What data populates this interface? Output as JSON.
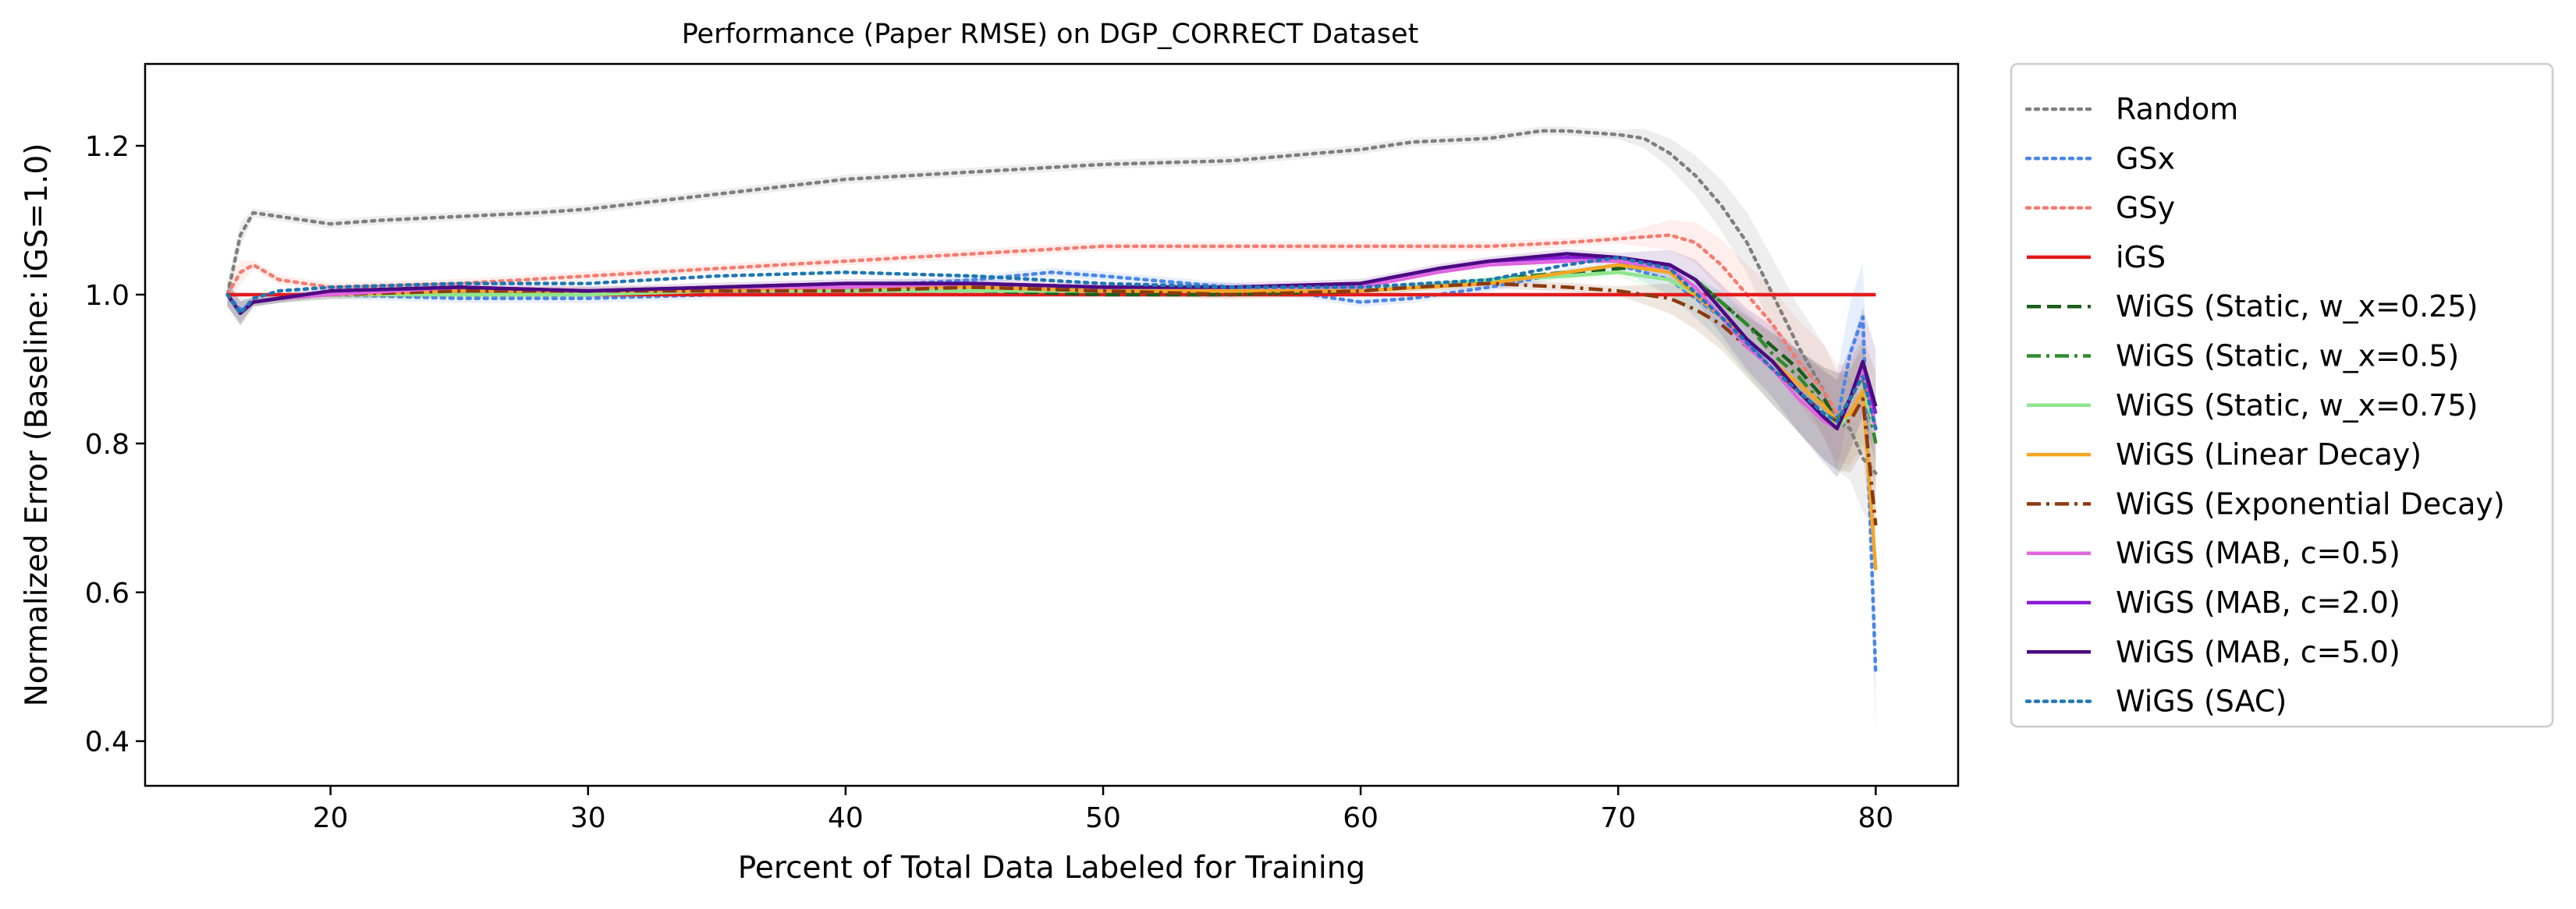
{
  "chart_data": {
    "type": "line",
    "title": "Performance (Paper RMSE) on DGP_CORRECT Dataset",
    "xlabel": "Percent of Total Data Labeled for Training",
    "ylabel": "Normalized Error (Baseline: iGS=1.0)",
    "xlim": [
      12.8,
      83.2
    ],
    "ylim": [
      0.34,
      1.31
    ],
    "xticks": [
      20,
      30,
      40,
      50,
      60,
      70,
      80
    ],
    "yticks": [
      0.4,
      0.6,
      0.8,
      1.0,
      1.2
    ],
    "legend_position": "outside right",
    "series": [
      {
        "name": "Random",
        "color": "#7f7f7f",
        "dash": "dot",
        "band": true,
        "x": [
          16,
          16.5,
          17,
          18,
          20,
          22,
          25,
          28,
          30,
          35,
          40,
          45,
          50,
          55,
          60,
          62,
          65,
          67,
          68,
          70,
          71,
          72,
          73,
          74,
          75,
          76,
          77,
          78,
          78.5,
          79,
          79.5,
          80
        ],
        "y": [
          1.0,
          1.08,
          1.11,
          1.105,
          1.095,
          1.1,
          1.105,
          1.11,
          1.115,
          1.135,
          1.155,
          1.165,
          1.175,
          1.18,
          1.195,
          1.205,
          1.21,
          1.22,
          1.22,
          1.215,
          1.21,
          1.19,
          1.16,
          1.12,
          1.07,
          1.0,
          0.93,
          0.87,
          0.83,
          0.82,
          0.78,
          0.76
        ]
      },
      {
        "name": "GSx",
        "color": "#4a86e8",
        "dash": "dot",
        "band": true,
        "x": [
          16,
          16.5,
          17,
          18,
          20,
          25,
          30,
          35,
          40,
          45,
          48,
          50,
          55,
          58,
          60,
          62,
          65,
          68,
          70,
          72,
          74,
          76,
          78,
          78.5,
          79,
          79.5,
          80
        ],
        "y": [
          1.0,
          0.98,
          0.99,
          0.995,
          1.0,
          0.995,
          0.995,
          1.0,
          1.01,
          1.02,
          1.03,
          1.025,
          1.01,
          1.0,
          0.99,
          0.995,
          1.01,
          1.03,
          1.04,
          1.02,
          0.97,
          0.9,
          0.84,
          0.83,
          0.92,
          0.97,
          0.49
        ]
      },
      {
        "name": "GSy",
        "color": "#f47c70",
        "dash": "dot",
        "band": true,
        "x": [
          16,
          16.5,
          17,
          18,
          20,
          25,
          30,
          35,
          40,
          45,
          50,
          55,
          60,
          65,
          68,
          70,
          72,
          73,
          74,
          75,
          76,
          77,
          78,
          78.5,
          79,
          79.5,
          80
        ],
        "y": [
          1.0,
          1.03,
          1.04,
          1.02,
          1.01,
          1.015,
          1.025,
          1.035,
          1.045,
          1.055,
          1.065,
          1.065,
          1.065,
          1.065,
          1.07,
          1.075,
          1.08,
          1.07,
          1.04,
          1.0,
          0.96,
          0.91,
          0.87,
          0.84,
          0.84,
          0.87,
          0.82
        ]
      },
      {
        "name": "iGS",
        "color": "#e41a1c",
        "dash": "solid",
        "band": false,
        "x": [
          16,
          80
        ],
        "y": [
          1.0,
          1.0
        ]
      },
      {
        "name": "WiGS (Static, w_x=0.25)",
        "color": "#1a5e1a",
        "dash": "dash",
        "band": false,
        "x": [
          16,
          16.5,
          17,
          18,
          20,
          25,
          30,
          35,
          40,
          45,
          50,
          55,
          60,
          62,
          65,
          68,
          70,
          72,
          73,
          74,
          75,
          76,
          77,
          78,
          78.5,
          79,
          79.5,
          80
        ],
        "y": [
          1.0,
          0.975,
          0.99,
          0.995,
          1.0,
          1.005,
          1.005,
          1.005,
          1.005,
          1.005,
          1.0,
          1.0,
          1.005,
          1.01,
          1.02,
          1.03,
          1.035,
          1.04,
          1.02,
          0.99,
          0.96,
          0.93,
          0.9,
          0.86,
          0.83,
          0.86,
          0.9,
          0.85
        ]
      },
      {
        "name": "WiGS (Static, w_x=0.5)",
        "color": "#2e8b2e",
        "dash": "dashdot",
        "band": false,
        "x": [
          16,
          16.5,
          17,
          18,
          20,
          25,
          30,
          35,
          40,
          45,
          50,
          55,
          60,
          62,
          65,
          68,
          70,
          72,
          73,
          74,
          75,
          76,
          77,
          78,
          78.5,
          79,
          79.5,
          80
        ],
        "y": [
          1.0,
          0.975,
          0.99,
          0.995,
          1.0,
          1.0,
          1.0,
          1.005,
          1.005,
          1.01,
          1.005,
          1.005,
          1.005,
          1.01,
          1.02,
          1.03,
          1.04,
          1.04,
          1.02,
          0.99,
          0.96,
          0.92,
          0.89,
          0.85,
          0.83,
          0.86,
          0.89,
          0.8
        ]
      },
      {
        "name": "WiGS (Static, w_x=0.75)",
        "color": "#8ee68e",
        "dash": "solid",
        "band": true,
        "x": [
          16,
          16.5,
          17,
          18,
          20,
          25,
          30,
          35,
          40,
          45,
          50,
          55,
          60,
          62,
          65,
          68,
          70,
          72,
          73,
          74,
          75,
          76,
          77,
          78,
          78.5,
          79,
          79.5,
          80
        ],
        "y": [
          1.0,
          0.975,
          0.99,
          0.995,
          1.0,
          1.0,
          1.0,
          1.005,
          1.005,
          1.005,
          1.005,
          1.005,
          1.005,
          1.01,
          1.02,
          1.025,
          1.03,
          1.02,
          1.0,
          0.97,
          0.93,
          0.9,
          0.87,
          0.84,
          0.82,
          0.84,
          0.87,
          0.82
        ]
      },
      {
        "name": "WiGS (Linear Decay)",
        "color": "#f5a623",
        "dash": "solid",
        "band": false,
        "x": [
          16,
          16.5,
          17,
          18,
          20,
          25,
          30,
          35,
          40,
          45,
          50,
          55,
          60,
          65,
          68,
          70,
          72,
          73,
          74,
          75,
          76,
          77,
          78,
          78.5,
          79,
          79.5,
          80
        ],
        "y": [
          1.0,
          0.975,
          0.99,
          0.995,
          1.0,
          1.005,
          1.005,
          1.005,
          1.01,
          1.01,
          1.005,
          1.005,
          1.005,
          1.015,
          1.03,
          1.04,
          1.03,
          1.0,
          0.97,
          0.94,
          0.91,
          0.88,
          0.85,
          0.83,
          0.84,
          0.87,
          0.63
        ]
      },
      {
        "name": "WiGS (Exponential Decay)",
        "color": "#8b3a0f",
        "dash": "dashdot",
        "band": true,
        "x": [
          16,
          16.5,
          17,
          18,
          20,
          25,
          30,
          35,
          40,
          45,
          50,
          55,
          60,
          62,
          65,
          68,
          70,
          71,
          72,
          73,
          74,
          75,
          76,
          77,
          78,
          78.5,
          79,
          79.5,
          80
        ],
        "y": [
          1.0,
          0.975,
          0.99,
          0.995,
          1.0,
          1.005,
          1.005,
          1.005,
          1.005,
          1.01,
          1.005,
          1.0,
          1.005,
          1.01,
          1.015,
          1.01,
          1.005,
          1.0,
          0.995,
          0.98,
          0.96,
          0.93,
          0.9,
          0.87,
          0.84,
          0.83,
          0.83,
          0.86,
          0.69
        ]
      },
      {
        "name": "WiGS (MAB, c=0.5)",
        "color": "#e066e0",
        "dash": "solid",
        "band": false,
        "x": [
          16,
          16.5,
          17,
          18,
          20,
          25,
          30,
          35,
          40,
          45,
          50,
          55,
          60,
          63,
          65,
          68,
          70,
          72,
          73,
          74,
          75,
          76,
          77,
          78,
          78.5,
          79,
          79.5,
          80
        ],
        "y": [
          1.0,
          0.975,
          0.99,
          0.995,
          1.0,
          1.01,
          1.005,
          1.01,
          1.01,
          1.015,
          1.01,
          1.01,
          1.01,
          1.03,
          1.04,
          1.045,
          1.045,
          1.035,
          1.01,
          0.97,
          0.93,
          0.9,
          0.86,
          0.83,
          0.82,
          0.86,
          0.9,
          0.82
        ]
      },
      {
        "name": "WiGS (MAB, c=2.0)",
        "color": "#8a1ad6",
        "dash": "solid",
        "band": false,
        "x": [
          16,
          16.5,
          17,
          18,
          20,
          25,
          30,
          35,
          40,
          45,
          50,
          55,
          60,
          63,
          65,
          68,
          70,
          72,
          73,
          74,
          75,
          76,
          77,
          78,
          78.5,
          79,
          79.5,
          80
        ],
        "y": [
          1.0,
          0.975,
          0.99,
          0.995,
          1.005,
          1.01,
          1.005,
          1.01,
          1.015,
          1.015,
          1.01,
          1.01,
          1.015,
          1.035,
          1.045,
          1.05,
          1.05,
          1.04,
          1.02,
          0.98,
          0.94,
          0.91,
          0.87,
          0.835,
          0.82,
          0.86,
          0.91,
          0.84
        ]
      },
      {
        "name": "WiGS (MAB, c=5.0)",
        "color": "#4b0a82",
        "dash": "solid",
        "band": true,
        "x": [
          16,
          16.5,
          17,
          18,
          20,
          25,
          30,
          35,
          40,
          45,
          50,
          55,
          60,
          63,
          65,
          68,
          70,
          72,
          73,
          74,
          75,
          76,
          77,
          78,
          78.5,
          79,
          79.5,
          80
        ],
        "y": [
          1.0,
          0.975,
          0.99,
          0.995,
          1.005,
          1.01,
          1.005,
          1.01,
          1.015,
          1.015,
          1.01,
          1.01,
          1.015,
          1.035,
          1.045,
          1.055,
          1.05,
          1.04,
          1.02,
          0.98,
          0.94,
          0.91,
          0.87,
          0.835,
          0.82,
          0.86,
          0.91,
          0.85
        ]
      },
      {
        "name": "WiGS (SAC)",
        "color": "#1f77b4",
        "dash": "dot",
        "band": false,
        "x": [
          16,
          16.5,
          17,
          18,
          20,
          25,
          30,
          35,
          40,
          45,
          50,
          55,
          60,
          65,
          68,
          70,
          72,
          74,
          76,
          78,
          78.5,
          79,
          79.5,
          80
        ],
        "y": [
          1.0,
          0.975,
          0.995,
          1.005,
          1.01,
          1.015,
          1.015,
          1.025,
          1.03,
          1.025,
          1.015,
          1.01,
          1.01,
          1.02,
          1.04,
          1.05,
          1.035,
          0.97,
          0.9,
          0.84,
          0.83,
          0.86,
          0.89,
          0.82
        ]
      }
    ]
  }
}
